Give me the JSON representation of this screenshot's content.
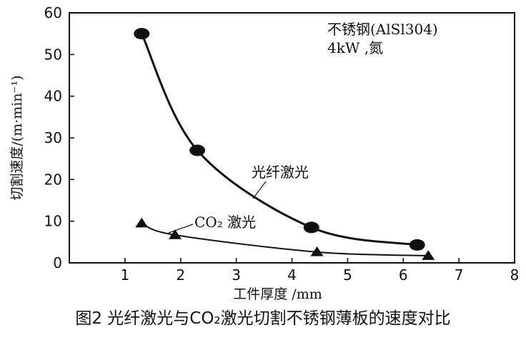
{
  "chart_data": {
    "type": "line",
    "xlabel": "工件厚度 /mm",
    "ylabel": "切割速度/(m·min⁻¹)",
    "xlim": [
      0,
      8
    ],
    "ylim": [
      0,
      60
    ],
    "x_ticks": [
      "1",
      "2",
      "3",
      "4",
      "5",
      "6",
      "7",
      "8"
    ],
    "y_ticks": [
      "0",
      "10",
      "20",
      "30",
      "40",
      "50",
      "60"
    ],
    "grid": false,
    "annotation_box": {
      "line1": "不锈钢(AlSl304)",
      "line2": "4kW ,氮"
    },
    "series": [
      {
        "name": "光纤激光",
        "marker": "circle",
        "x": [
          1.3,
          2.3,
          4.35,
          6.25
        ],
        "y": [
          55,
          27,
          8.5,
          4.3
        ]
      },
      {
        "name": "CO₂ 激光",
        "marker": "triangle",
        "x": [
          1.3,
          1.9,
          4.45,
          6.45
        ],
        "y": [
          9.5,
          6.7,
          2.6,
          1.7
        ]
      }
    ]
  },
  "caption": "图2 光纤激光与CO₂激光切割不锈钢薄板的速度对比"
}
